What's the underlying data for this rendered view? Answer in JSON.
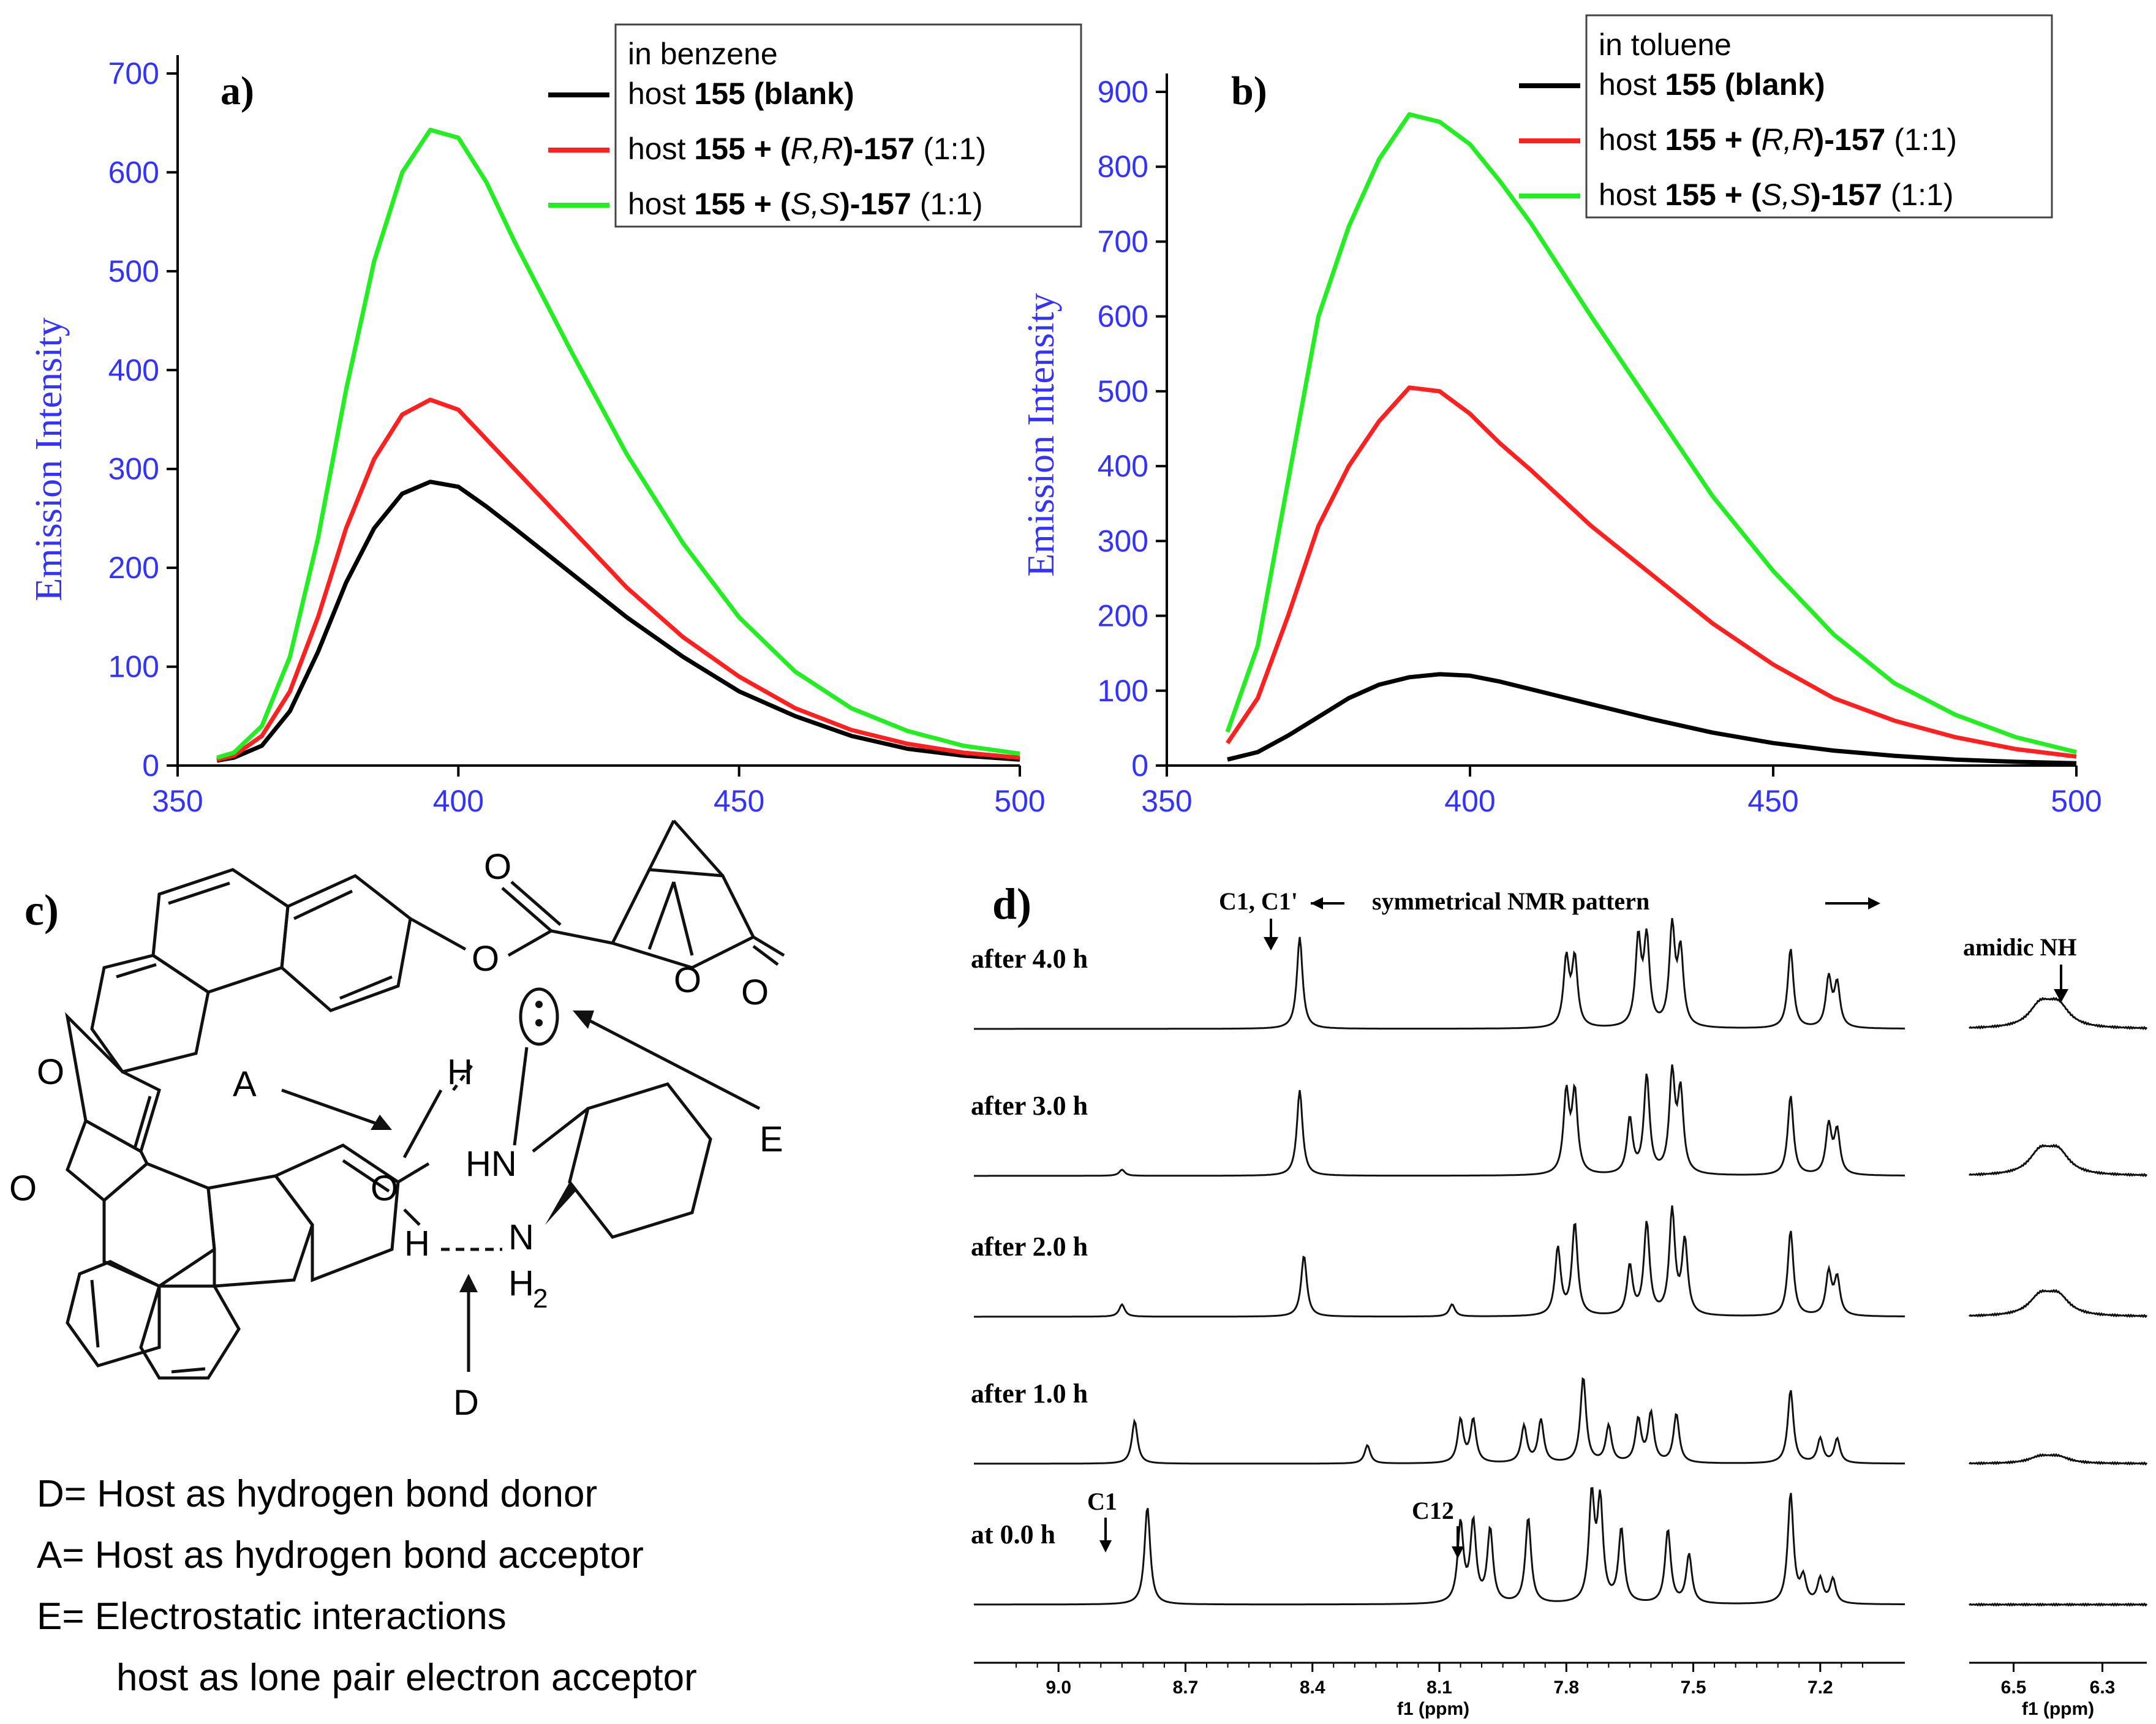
{
  "chart_data": [
    {
      "type": "line",
      "panel_label": "a)",
      "ylabel": "Emission Intensity",
      "xlabel": "",
      "xlim": [
        350,
        500
      ],
      "ylim": [
        0,
        700
      ],
      "xticks": [
        "350",
        "400",
        "450",
        "500"
      ],
      "yticks": [
        "0",
        "100",
        "200",
        "300",
        "400",
        "500",
        "600",
        "700"
      ],
      "legend": {
        "placement": "top-right",
        "header": "in benzene"
      },
      "series": [
        {
          "legend_plain": "host ",
          "legend_num": "155",
          "legend_rest": " (blank)",
          "legend_mid": "",
          "legend_rr": "",
          "legend_ratio": "",
          "color": "#000000",
          "x": [
            357,
            360,
            365,
            370,
            375,
            380,
            385,
            390,
            395,
            400,
            405,
            410,
            420,
            430,
            440,
            450,
            460,
            470,
            480,
            490,
            500
          ],
          "y": [
            5,
            8,
            20,
            55,
            115,
            185,
            240,
            275,
            287,
            282,
            262,
            240,
            195,
            150,
            110,
            75,
            50,
            30,
            17,
            10,
            6
          ]
        },
        {
          "legend_plain": "host ",
          "legend_num": "155",
          "legend_mid": " + (",
          "legend_rr": "R,R",
          "legend_rest": ")-157",
          "legend_ratio": " (1:1)",
          "color": "#ff2020",
          "x": [
            357,
            360,
            365,
            370,
            375,
            380,
            385,
            390,
            395,
            400,
            405,
            410,
            420,
            430,
            440,
            450,
            460,
            470,
            480,
            490,
            500
          ],
          "y": [
            6,
            10,
            30,
            75,
            150,
            240,
            310,
            355,
            370,
            360,
            330,
            300,
            240,
            180,
            130,
            90,
            58,
            36,
            22,
            13,
            8
          ]
        },
        {
          "legend_plain": "host ",
          "legend_num": "155",
          "legend_mid": " + (",
          "legend_rr": "S,S",
          "legend_rest": ")-157",
          "legend_ratio": " (1:1)",
          "color": "#22ee22",
          "x": [
            357,
            360,
            365,
            370,
            375,
            380,
            385,
            390,
            395,
            400,
            405,
            410,
            420,
            430,
            440,
            450,
            460,
            470,
            480,
            490,
            500
          ],
          "y": [
            8,
            13,
            40,
            110,
            230,
            380,
            510,
            600,
            643,
            635,
            590,
            530,
            420,
            315,
            225,
            150,
            95,
            58,
            35,
            20,
            12
          ]
        }
      ]
    },
    {
      "type": "line",
      "panel_label": "b)",
      "ylabel": "Emission Intensity",
      "xlabel": "",
      "xlim": [
        350,
        500
      ],
      "ylim": [
        0,
        900
      ],
      "xticks": [
        "350",
        "400",
        "450",
        "500"
      ],
      "yticks": [
        "0",
        "100",
        "200",
        "300",
        "400",
        "500",
        "600",
        "700",
        "800",
        "900"
      ],
      "legend": {
        "placement": "top-right",
        "header": "in toluene"
      },
      "series": [
        {
          "legend_plain": "host ",
          "legend_num": "155",
          "legend_rest": " (blank)",
          "legend_mid": "",
          "legend_rr": "",
          "legend_ratio": "",
          "color": "#000000",
          "x": [
            360,
            365,
            370,
            375,
            380,
            385,
            390,
            395,
            400,
            405,
            410,
            420,
            430,
            440,
            450,
            460,
            470,
            480,
            490,
            500
          ],
          "y": [
            8,
            18,
            40,
            65,
            90,
            108,
            118,
            122,
            120,
            112,
            102,
            82,
            62,
            44,
            30,
            20,
            13,
            8,
            5,
            3
          ]
        },
        {
          "legend_plain": "host ",
          "legend_num": "155",
          "legend_mid": " + (",
          "legend_rr": "R,R",
          "legend_rest": ")-157",
          "legend_ratio": " (1:1)",
          "color": "#ff2020",
          "x": [
            360,
            365,
            370,
            375,
            380,
            385,
            390,
            395,
            400,
            405,
            410,
            420,
            430,
            440,
            450,
            460,
            470,
            480,
            490,
            500
          ],
          "y": [
            30,
            90,
            200,
            320,
            400,
            460,
            505,
            500,
            470,
            430,
            395,
            320,
            255,
            190,
            135,
            90,
            60,
            38,
            22,
            12
          ]
        },
        {
          "legend_plain": "host ",
          "legend_num": "155",
          "legend_mid": " + (",
          "legend_rr": "S,S",
          "legend_rest": ")-157",
          "legend_ratio": " (1:1)",
          "color": "#22ee22",
          "x": [
            360,
            365,
            370,
            375,
            380,
            385,
            390,
            395,
            400,
            405,
            410,
            420,
            430,
            440,
            450,
            460,
            470,
            480,
            490,
            500
          ],
          "y": [
            45,
            160,
            380,
            600,
            720,
            810,
            870,
            860,
            830,
            780,
            725,
            600,
            480,
            360,
            260,
            175,
            110,
            68,
            38,
            18
          ]
        }
      ]
    }
  ],
  "panel_c": {
    "label": "c)",
    "atoms": {
      "O1": "O",
      "O2": "O",
      "O3": "O",
      "O4": "O",
      "O5": "O",
      "O6": "O",
      "H1": "H",
      "H2": "H",
      "HN": "HN",
      "N": "N",
      "H2sub": "H",
      "H2num": "2"
    },
    "arrows": {
      "A": "A",
      "D": "D",
      "E": "E"
    },
    "captions": [
      "D= Host as hydrogen bond donor",
      "A= Host as hydrogen bond acceptor",
      "E= Electrostatic interactions",
      "host as lone pair electron acceptor"
    ]
  },
  "panel_d": {
    "label": "d)",
    "annotation_c1c1": "C1, C1'",
    "annotation_sym": "symmetrical NMR pattern",
    "annotation_nh": "amidic NH",
    "annotation_c1": "C1",
    "annotation_c12": "C12",
    "traces": [
      "after 4.0 h",
      "after 3.0 h",
      "after 2.0 h",
      "after 1.0 h",
      "at 0.0 h"
    ],
    "main_axis": {
      "ticks": [
        "9.0",
        "8.7",
        "8.4",
        "8.1",
        "7.8",
        "7.5",
        "7.2"
      ],
      "label": "f1 (ppm)"
    },
    "nh_axis": {
      "ticks": [
        "6.5",
        "6.3"
      ],
      "label": "f1 (ppm)"
    }
  }
}
